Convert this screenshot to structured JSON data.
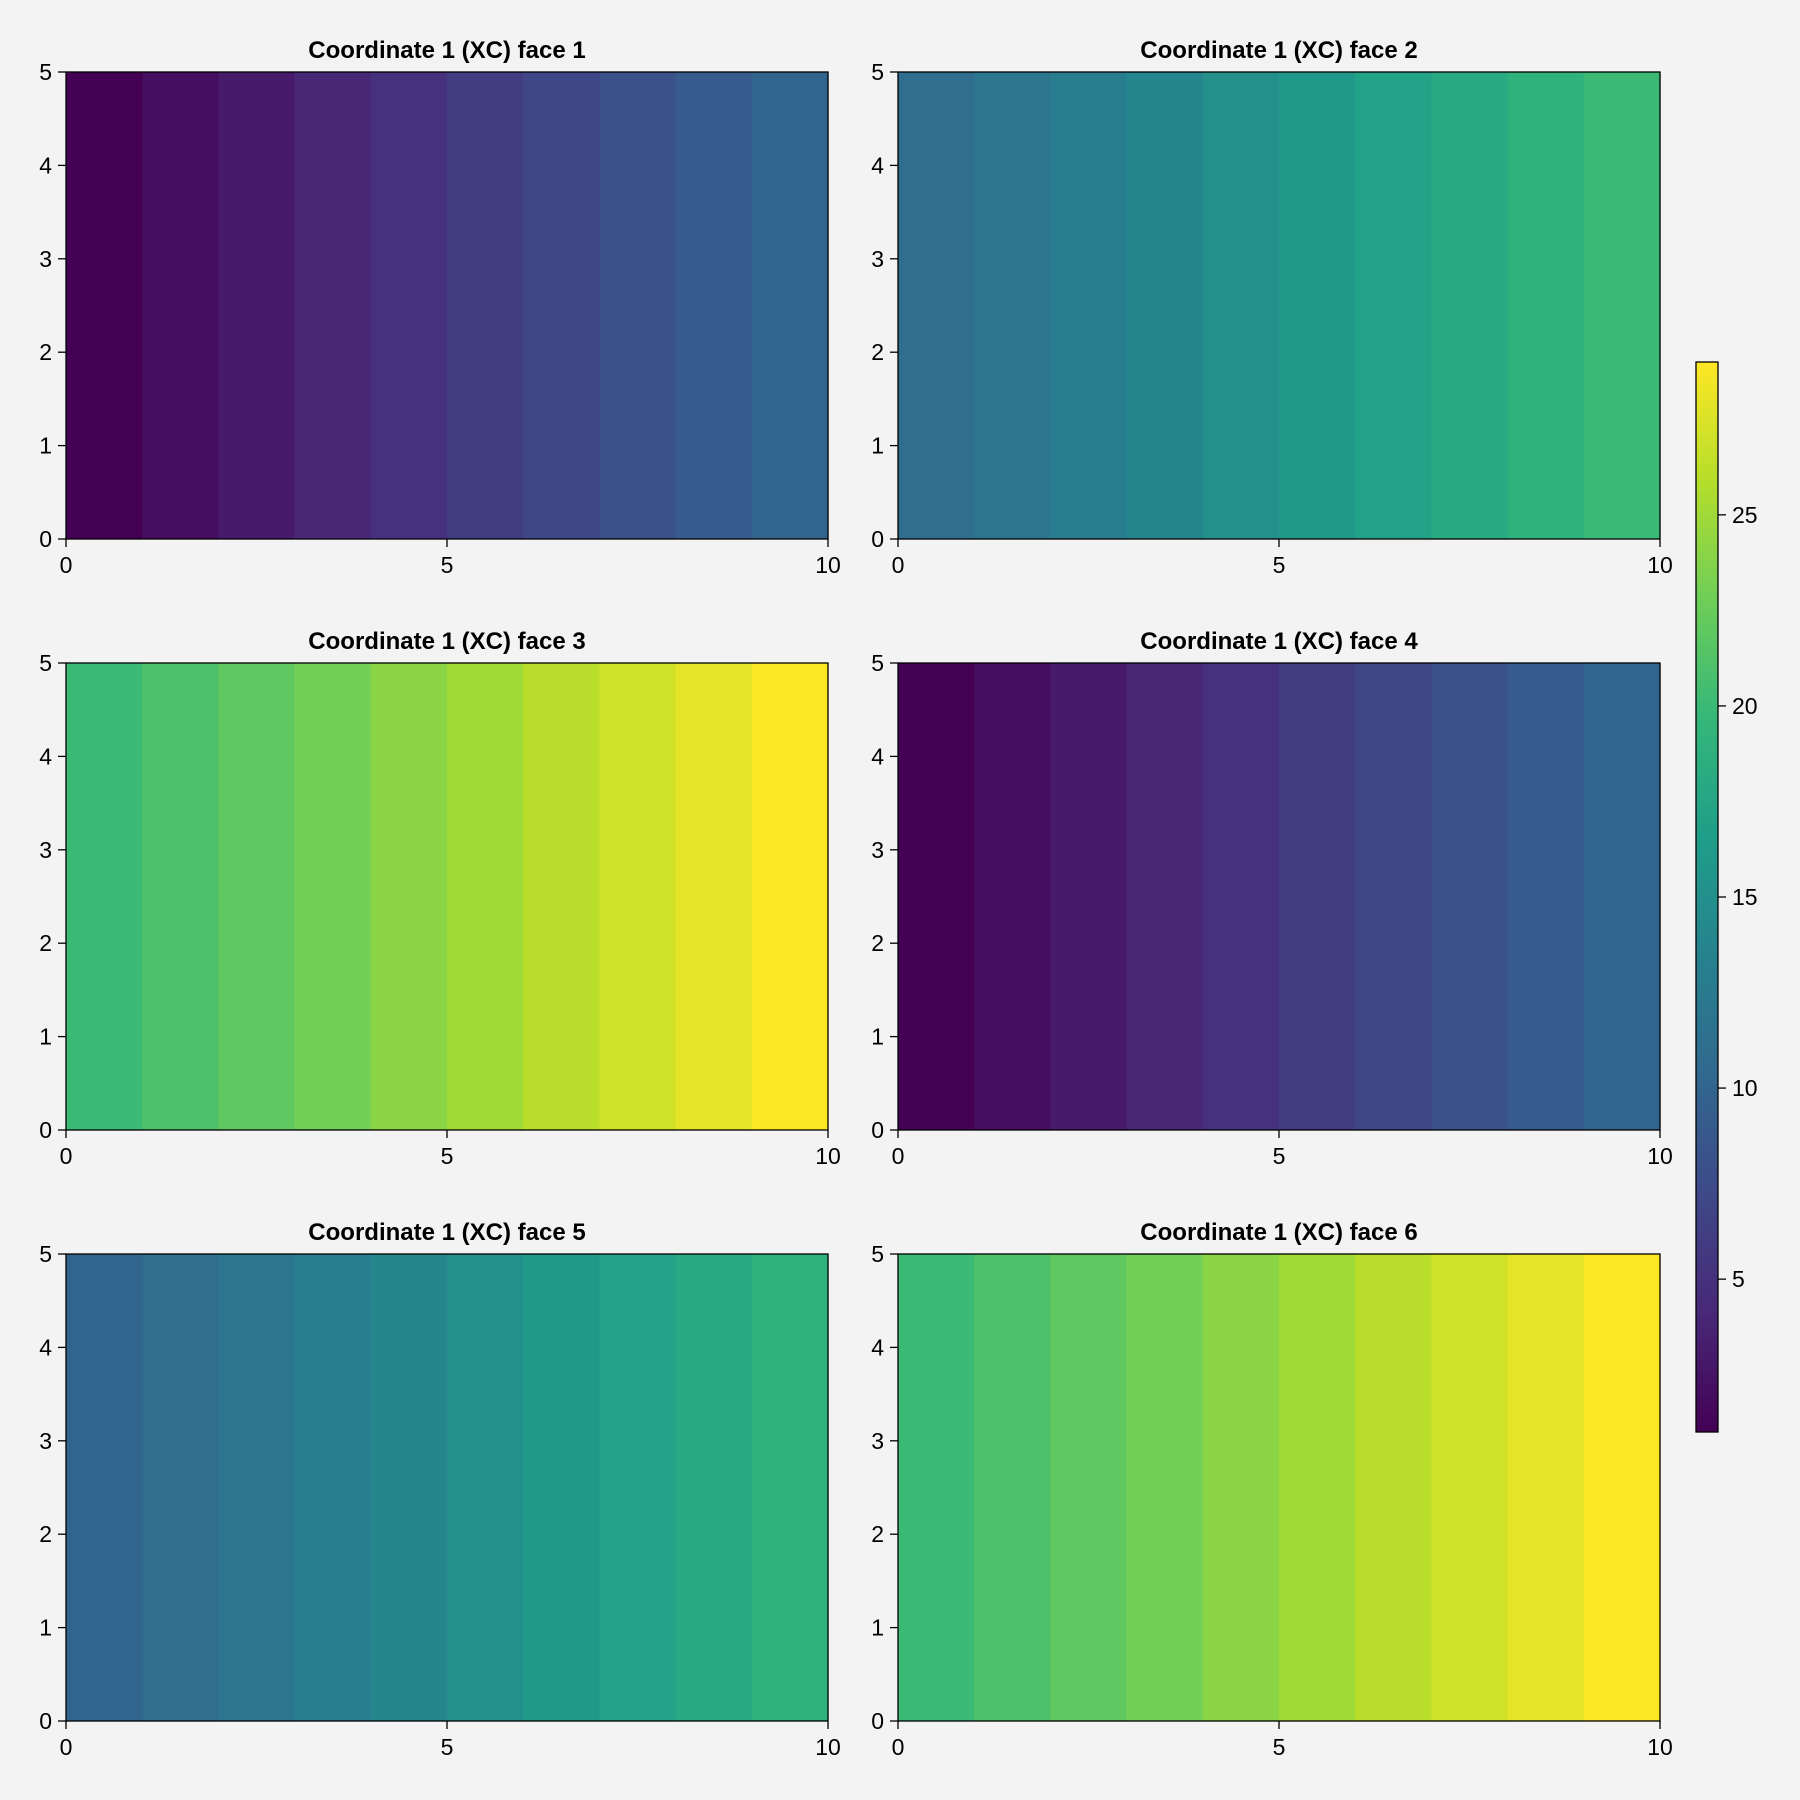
{
  "colormap": {
    "name": "viridis",
    "stops": [
      "#440154",
      "#482878",
      "#3e4989",
      "#31688e",
      "#26828e",
      "#1f9e89",
      "#35b779",
      "#6ece58",
      "#b5de2b",
      "#fde725"
    ]
  },
  "colorbar": {
    "range": [
      1,
      29
    ],
    "ticks": [
      5,
      10,
      15,
      20,
      25
    ],
    "tick_labels": [
      "5",
      "10",
      "15",
      "20",
      "25"
    ]
  },
  "chart_data": [
    {
      "type": "heatmap",
      "title": "Coordinate 1 (XC) face 1",
      "x_edges": [
        0,
        1,
        2,
        3,
        4,
        5,
        6,
        7,
        8,
        9,
        10
      ],
      "y_range": [
        0,
        5
      ],
      "values": [
        1,
        2,
        3,
        4,
        5,
        6,
        7,
        8,
        9,
        10
      ],
      "xticks": [
        0,
        5,
        10
      ],
      "xtick_labels": [
        "0",
        "5",
        "10"
      ],
      "yticks": [
        0,
        1,
        2,
        3,
        4,
        5
      ],
      "ytick_labels": [
        "0",
        "1",
        "2",
        "3",
        "4",
        "5"
      ]
    },
    {
      "type": "heatmap",
      "title": "Coordinate 1 (XC) face 2",
      "x_edges": [
        0,
        1,
        2,
        3,
        4,
        5,
        6,
        7,
        8,
        9,
        10
      ],
      "y_range": [
        0,
        5
      ],
      "values": [
        11,
        12,
        13,
        14,
        15,
        16,
        17,
        18,
        19,
        20
      ],
      "xticks": [
        0,
        5,
        10
      ],
      "xtick_labels": [
        "0",
        "5",
        "10"
      ],
      "yticks": [
        0,
        1,
        2,
        3,
        4,
        5
      ],
      "ytick_labels": [
        "0",
        "1",
        "2",
        "3",
        "4",
        "5"
      ]
    },
    {
      "type": "heatmap",
      "title": "Coordinate 1 (XC) face 3",
      "x_edges": [
        0,
        1,
        2,
        3,
        4,
        5,
        6,
        7,
        8,
        9,
        10
      ],
      "y_range": [
        0,
        5
      ],
      "values": [
        20,
        21,
        22,
        23,
        24,
        25,
        26,
        27,
        28,
        29
      ],
      "xticks": [
        0,
        5,
        10
      ],
      "xtick_labels": [
        "0",
        "5",
        "10"
      ],
      "yticks": [
        0,
        1,
        2,
        3,
        4,
        5
      ],
      "ytick_labels": [
        "0",
        "1",
        "2",
        "3",
        "4",
        "5"
      ]
    },
    {
      "type": "heatmap",
      "title": "Coordinate 1 (XC) face 4",
      "x_edges": [
        0,
        1,
        2,
        3,
        4,
        5,
        6,
        7,
        8,
        9,
        10
      ],
      "y_range": [
        0,
        5
      ],
      "values": [
        1,
        2,
        3,
        4,
        5,
        6,
        7,
        8,
        9,
        10
      ],
      "xticks": [
        0,
        5,
        10
      ],
      "xtick_labels": [
        "0",
        "5",
        "10"
      ],
      "yticks": [
        0,
        1,
        2,
        3,
        4,
        5
      ],
      "ytick_labels": [
        "0",
        "1",
        "2",
        "3",
        "4",
        "5"
      ]
    },
    {
      "type": "heatmap",
      "title": "Coordinate 1 (XC) face 5",
      "x_edges": [
        0,
        1,
        2,
        3,
        4,
        5,
        6,
        7,
        8,
        9,
        10
      ],
      "y_range": [
        0,
        5
      ],
      "values": [
        10,
        11,
        12,
        13,
        14,
        15,
        16,
        17,
        18,
        19
      ],
      "xticks": [
        0,
        5,
        10
      ],
      "xtick_labels": [
        "0",
        "5",
        "10"
      ],
      "yticks": [
        0,
        1,
        2,
        3,
        4,
        5
      ],
      "ytick_labels": [
        "0",
        "1",
        "2",
        "3",
        "4",
        "5"
      ]
    },
    {
      "type": "heatmap",
      "title": "Coordinate 1 (XC) face 6",
      "x_edges": [
        0,
        1,
        2,
        3,
        4,
        5,
        6,
        7,
        8,
        9,
        10
      ],
      "y_range": [
        0,
        5
      ],
      "values": [
        20,
        21,
        22,
        23,
        24,
        25,
        26,
        27,
        28,
        29
      ],
      "xticks": [
        0,
        5,
        10
      ],
      "xtick_labels": [
        "0",
        "5",
        "10"
      ],
      "yticks": [
        0,
        1,
        2,
        3,
        4,
        5
      ],
      "ytick_labels": [
        "0",
        "1",
        "2",
        "3",
        "4",
        "5"
      ]
    }
  ]
}
